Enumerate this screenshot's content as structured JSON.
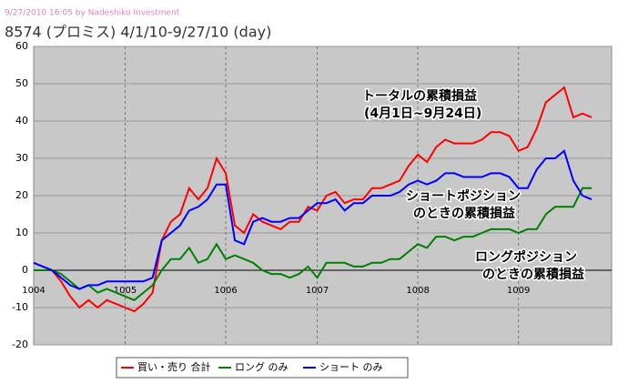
{
  "header": "9/27/2010 16:05 by Nadeshiko Investment",
  "chart_data": {
    "type": "line",
    "title": "8574 (プロミス) 4/1/10-9/27/10 (day)",
    "categories": [
      "1004",
      null,
      null,
      null,
      null,
      null,
      null,
      null,
      null,
      null,
      "1005",
      null,
      null,
      null,
      null,
      null,
      null,
      null,
      null,
      null,
      null,
      "1006",
      null,
      null,
      null,
      null,
      null,
      null,
      null,
      null,
      null,
      "1007",
      null,
      null,
      null,
      null,
      null,
      null,
      null,
      null,
      null,
      null,
      "1008",
      null,
      null,
      null,
      null,
      null,
      null,
      null,
      null,
      null,
      null,
      "1009",
      null,
      null,
      null,
      null,
      null,
      null,
      null,
      null
    ],
    "ylim": [
      -20,
      60
    ],
    "yticks": [
      -20,
      -10,
      0,
      10,
      20,
      30,
      40,
      50,
      60
    ],
    "grid": true,
    "series": [
      {
        "name": "買い・売り 合計",
        "color": "#ff0000",
        "values": [
          2,
          1,
          0,
          -3,
          -7,
          -10,
          -8,
          -10,
          -8,
          -9,
          -10,
          -11,
          -9,
          -6,
          8,
          13,
          15,
          22,
          19,
          22,
          30,
          26,
          12,
          10,
          15,
          13,
          12,
          11,
          13,
          13,
          17,
          16,
          20,
          21,
          18,
          19,
          19,
          22,
          22,
          23,
          24,
          28,
          31,
          29,
          33,
          35,
          34,
          34,
          34,
          35,
          37,
          37,
          36,
          32,
          33,
          38,
          45,
          47,
          49,
          41,
          42,
          41
        ]
      },
      {
        "name": "ロング のみ",
        "color": "#008000",
        "values": [
          0,
          0,
          0,
          -1,
          -3,
          -5,
          -4,
          -6,
          -5,
          -6,
          -7,
          -8,
          -6,
          -4,
          0,
          3,
          3,
          6,
          2,
          3,
          7,
          3,
          4,
          3,
          2,
          0,
          -1,
          -1,
          -2,
          -1,
          1,
          -2,
          2,
          2,
          2,
          1,
          1,
          2,
          2,
          3,
          3,
          5,
          7,
          6,
          9,
          9,
          8,
          9,
          9,
          10,
          11,
          11,
          11,
          10,
          11,
          11,
          15,
          17,
          17,
          17,
          22,
          22
        ]
      },
      {
        "name": "ショート のみ",
        "color": "#0000ff",
        "values": [
          2,
          1,
          0,
          -2,
          -4,
          -5,
          -4,
          -4,
          -3,
          -3,
          -3,
          -3,
          -3,
          -2,
          8,
          10,
          12,
          16,
          17,
          19,
          23,
          23,
          8,
          7,
          13,
          14,
          13,
          13,
          14,
          14,
          16,
          18,
          18,
          19,
          16,
          18,
          18,
          20,
          20,
          20,
          21,
          23,
          24,
          23,
          24,
          26,
          26,
          25,
          25,
          25,
          26,
          26,
          25,
          22,
          22,
          27,
          30,
          30,
          32,
          24,
          20,
          19
        ]
      }
    ],
    "annotations": [
      {
        "lines": [
          "トータルの累積損益",
          "(4月1日~9月24日)"
        ]
      },
      {
        "lines": [
          "ショートポジション",
          "のときの累積損益"
        ]
      },
      {
        "lines": [
          "ロングポジション",
          "のときの累積損益"
        ]
      }
    ]
  }
}
